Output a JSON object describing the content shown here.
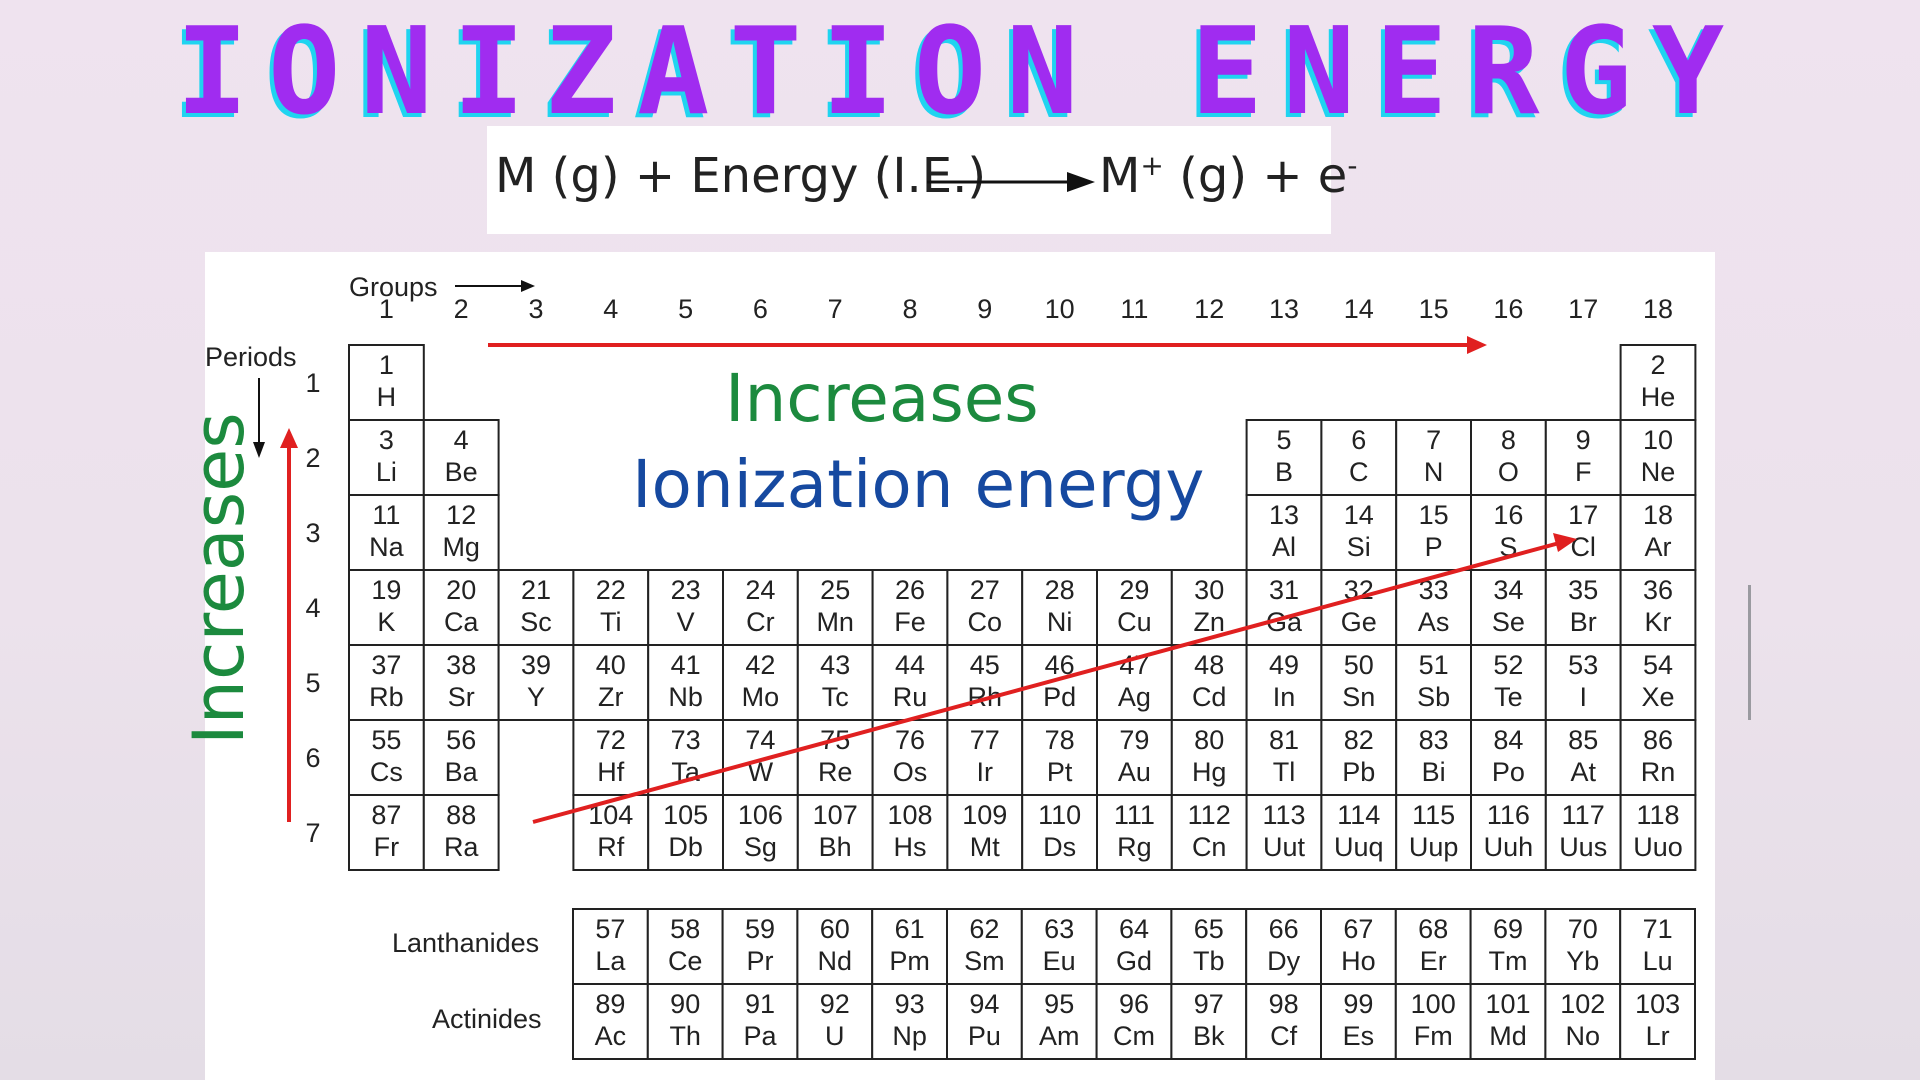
{
  "title": "IONIZATION ENERGY",
  "equation": {
    "left": "M (g) + Energy (I.E.)",
    "right_base": "M",
    "right_sup": "+",
    "right_rest": " (g) + e",
    "right_sup2": "-"
  },
  "labels": {
    "groups": "Groups",
    "periods": "Periods",
    "increases_horizontal": "Increases",
    "ionization_energy": "Ionization energy",
    "increases_vertical": "Increases",
    "lanthanides": "Lanthanides",
    "actinides": "Actinides"
  },
  "group_numbers": [
    "1",
    "2",
    "3",
    "4",
    "5",
    "6",
    "7",
    "8",
    "9",
    "10",
    "11",
    "12",
    "13",
    "14",
    "15",
    "16",
    "17",
    "18"
  ],
  "period_numbers": [
    "1",
    "2",
    "3",
    "4",
    "5",
    "6",
    "7"
  ],
  "colors": {
    "title": "#a02cf0",
    "title_shadow": "#1fd4f0",
    "arrow": "#e02020",
    "increases": "#1c8a3e",
    "ionization": "#1649a0"
  },
  "elements": [
    {
      "n": "1",
      "s": "H",
      "p": 1,
      "g": 1
    },
    {
      "n": "2",
      "s": "He",
      "p": 1,
      "g": 18
    },
    {
      "n": "3",
      "s": "Li",
      "p": 2,
      "g": 1
    },
    {
      "n": "4",
      "s": "Be",
      "p": 2,
      "g": 2
    },
    {
      "n": "5",
      "s": "B",
      "p": 2,
      "g": 13
    },
    {
      "n": "6",
      "s": "C",
      "p": 2,
      "g": 14
    },
    {
      "n": "7",
      "s": "N",
      "p": 2,
      "g": 15
    },
    {
      "n": "8",
      "s": "O",
      "p": 2,
      "g": 16
    },
    {
      "n": "9",
      "s": "F",
      "p": 2,
      "g": 17
    },
    {
      "n": "10",
      "s": "Ne",
      "p": 2,
      "g": 18
    },
    {
      "n": "11",
      "s": "Na",
      "p": 3,
      "g": 1
    },
    {
      "n": "12",
      "s": "Mg",
      "p": 3,
      "g": 2
    },
    {
      "n": "13",
      "s": "Al",
      "p": 3,
      "g": 13
    },
    {
      "n": "14",
      "s": "Si",
      "p": 3,
      "g": 14
    },
    {
      "n": "15",
      "s": "P",
      "p": 3,
      "g": 15
    },
    {
      "n": "16",
      "s": "S",
      "p": 3,
      "g": 16
    },
    {
      "n": "17",
      "s": "Cl",
      "p": 3,
      "g": 17
    },
    {
      "n": "18",
      "s": "Ar",
      "p": 3,
      "g": 18
    },
    {
      "n": "19",
      "s": "K",
      "p": 4,
      "g": 1
    },
    {
      "n": "20",
      "s": "Ca",
      "p": 4,
      "g": 2
    },
    {
      "n": "21",
      "s": "Sc",
      "p": 4,
      "g": 3
    },
    {
      "n": "22",
      "s": "Ti",
      "p": 4,
      "g": 4
    },
    {
      "n": "23",
      "s": "V",
      "p": 4,
      "g": 5
    },
    {
      "n": "24",
      "s": "Cr",
      "p": 4,
      "g": 6
    },
    {
      "n": "25",
      "s": "Mn",
      "p": 4,
      "g": 7
    },
    {
      "n": "26",
      "s": "Fe",
      "p": 4,
      "g": 8
    },
    {
      "n": "27",
      "s": "Co",
      "p": 4,
      "g": 9
    },
    {
      "n": "28",
      "s": "Ni",
      "p": 4,
      "g": 10
    },
    {
      "n": "29",
      "s": "Cu",
      "p": 4,
      "g": 11
    },
    {
      "n": "30",
      "s": "Zn",
      "p": 4,
      "g": 12
    },
    {
      "n": "31",
      "s": "Ga",
      "p": 4,
      "g": 13
    },
    {
      "n": "32",
      "s": "Ge",
      "p": 4,
      "g": 14
    },
    {
      "n": "33",
      "s": "As",
      "p": 4,
      "g": 15
    },
    {
      "n": "34",
      "s": "Se",
      "p": 4,
      "g": 16
    },
    {
      "n": "35",
      "s": "Br",
      "p": 4,
      "g": 17
    },
    {
      "n": "36",
      "s": "Kr",
      "p": 4,
      "g": 18
    },
    {
      "n": "37",
      "s": "Rb",
      "p": 5,
      "g": 1
    },
    {
      "n": "38",
      "s": "Sr",
      "p": 5,
      "g": 2
    },
    {
      "n": "39",
      "s": "Y",
      "p": 5,
      "g": 3
    },
    {
      "n": "40",
      "s": "Zr",
      "p": 5,
      "g": 4
    },
    {
      "n": "41",
      "s": "Nb",
      "p": 5,
      "g": 5
    },
    {
      "n": "42",
      "s": "Mo",
      "p": 5,
      "g": 6
    },
    {
      "n": "43",
      "s": "Tc",
      "p": 5,
      "g": 7
    },
    {
      "n": "44",
      "s": "Ru",
      "p": 5,
      "g": 8
    },
    {
      "n": "45",
      "s": "Rh",
      "p": 5,
      "g": 9
    },
    {
      "n": "46",
      "s": "Pd",
      "p": 5,
      "g": 10
    },
    {
      "n": "47",
      "s": "Ag",
      "p": 5,
      "g": 11
    },
    {
      "n": "48",
      "s": "Cd",
      "p": 5,
      "g": 12
    },
    {
      "n": "49",
      "s": "In",
      "p": 5,
      "g": 13
    },
    {
      "n": "50",
      "s": "Sn",
      "p": 5,
      "g": 14
    },
    {
      "n": "51",
      "s": "Sb",
      "p": 5,
      "g": 15
    },
    {
      "n": "52",
      "s": "Te",
      "p": 5,
      "g": 16
    },
    {
      "n": "53",
      "s": "I",
      "p": 5,
      "g": 17
    },
    {
      "n": "54",
      "s": "Xe",
      "p": 5,
      "g": 18
    },
    {
      "n": "55",
      "s": "Cs",
      "p": 6,
      "g": 1
    },
    {
      "n": "56",
      "s": "Ba",
      "p": 6,
      "g": 2
    },
    {
      "n": "72",
      "s": "Hf",
      "p": 6,
      "g": 4
    },
    {
      "n": "73",
      "s": "Ta",
      "p": 6,
      "g": 5
    },
    {
      "n": "74",
      "s": "W",
      "p": 6,
      "g": 6
    },
    {
      "n": "75",
      "s": "Re",
      "p": 6,
      "g": 7
    },
    {
      "n": "76",
      "s": "Os",
      "p": 6,
      "g": 8
    },
    {
      "n": "77",
      "s": "Ir",
      "p": 6,
      "g": 9
    },
    {
      "n": "78",
      "s": "Pt",
      "p": 6,
      "g": 10
    },
    {
      "n": "79",
      "s": "Au",
      "p": 6,
      "g": 11
    },
    {
      "n": "80",
      "s": "Hg",
      "p": 6,
      "g": 12
    },
    {
      "n": "81",
      "s": "Tl",
      "p": 6,
      "g": 13
    },
    {
      "n": "82",
      "s": "Pb",
      "p": 6,
      "g": 14
    },
    {
      "n": "83",
      "s": "Bi",
      "p": 6,
      "g": 15
    },
    {
      "n": "84",
      "s": "Po",
      "p": 6,
      "g": 16
    },
    {
      "n": "85",
      "s": "At",
      "p": 6,
      "g": 17
    },
    {
      "n": "86",
      "s": "Rn",
      "p": 6,
      "g": 18
    },
    {
      "n": "87",
      "s": "Fr",
      "p": 7,
      "g": 1
    },
    {
      "n": "88",
      "s": "Ra",
      "p": 7,
      "g": 2
    },
    {
      "n": "104",
      "s": "Rf",
      "p": 7,
      "g": 4
    },
    {
      "n": "105",
      "s": "Db",
      "p": 7,
      "g": 5
    },
    {
      "n": "106",
      "s": "Sg",
      "p": 7,
      "g": 6
    },
    {
      "n": "107",
      "s": "Bh",
      "p": 7,
      "g": 7
    },
    {
      "n": "108",
      "s": "Hs",
      "p": 7,
      "g": 8
    },
    {
      "n": "109",
      "s": "Mt",
      "p": 7,
      "g": 9
    },
    {
      "n": "110",
      "s": "Ds",
      "p": 7,
      "g": 10
    },
    {
      "n": "111",
      "s": "Rg",
      "p": 7,
      "g": 11
    },
    {
      "n": "112",
      "s": "Cn",
      "p": 7,
      "g": 12
    },
    {
      "n": "113",
      "s": "Uut",
      "p": 7,
      "g": 13
    },
    {
      "n": "114",
      "s": "Uuq",
      "p": 7,
      "g": 14
    },
    {
      "n": "115",
      "s": "Uup",
      "p": 7,
      "g": 15
    },
    {
      "n": "116",
      "s": "Uuh",
      "p": 7,
      "g": 16
    },
    {
      "n": "117",
      "s": "Uus",
      "p": 7,
      "g": 17
    },
    {
      "n": "118",
      "s": "Uuo",
      "p": 7,
      "g": 18
    }
  ],
  "lanthanides": [
    {
      "n": "57",
      "s": "La"
    },
    {
      "n": "58",
      "s": "Ce"
    },
    {
      "n": "59",
      "s": "Pr"
    },
    {
      "n": "60",
      "s": "Nd"
    },
    {
      "n": "61",
      "s": "Pm"
    },
    {
      "n": "62",
      "s": "Sm"
    },
    {
      "n": "63",
      "s": "Eu"
    },
    {
      "n": "64",
      "s": "Gd"
    },
    {
      "n": "65",
      "s": "Tb"
    },
    {
      "n": "66",
      "s": "Dy"
    },
    {
      "n": "67",
      "s": "Ho"
    },
    {
      "n": "68",
      "s": "Er"
    },
    {
      "n": "69",
      "s": "Tm"
    },
    {
      "n": "70",
      "s": "Yb"
    },
    {
      "n": "71",
      "s": "Lu"
    }
  ],
  "actinides": [
    {
      "n": "89",
      "s": "Ac"
    },
    {
      "n": "90",
      "s": "Th"
    },
    {
      "n": "91",
      "s": "Pa"
    },
    {
      "n": "92",
      "s": "U"
    },
    {
      "n": "93",
      "s": "Np"
    },
    {
      "n": "94",
      "s": "Pu"
    },
    {
      "n": "95",
      "s": "Am"
    },
    {
      "n": "96",
      "s": "Cm"
    },
    {
      "n": "97",
      "s": "Bk"
    },
    {
      "n": "98",
      "s": "Cf"
    },
    {
      "n": "99",
      "s": "Es"
    },
    {
      "n": "100",
      "s": "Fm"
    },
    {
      "n": "101",
      "s": "Md"
    },
    {
      "n": "102",
      "s": "No"
    },
    {
      "n": "103",
      "s": "Lr"
    }
  ]
}
